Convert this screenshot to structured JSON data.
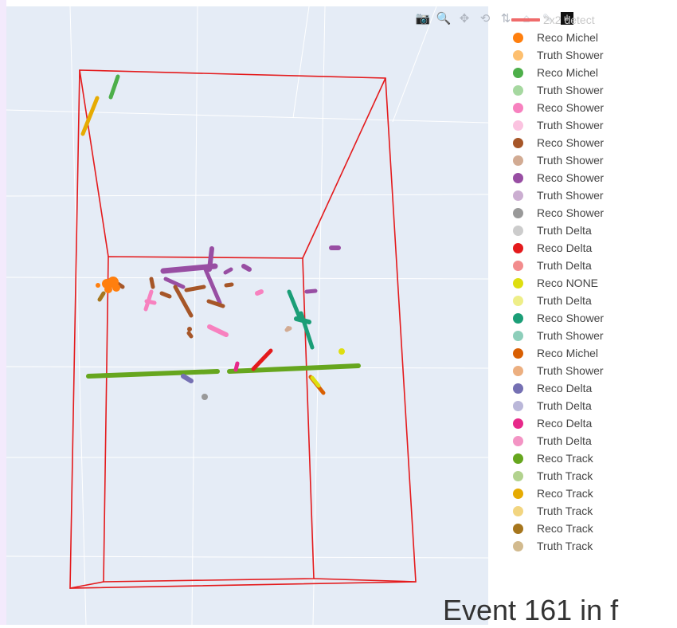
{
  "modebar": {
    "buttons": [
      {
        "icon": "camera-icon",
        "glyph": "📷"
      },
      {
        "icon": "zoom-icon",
        "glyph": "🔍"
      },
      {
        "icon": "pan-icon",
        "glyph": "✥"
      },
      {
        "icon": "orbit-rotation-icon",
        "glyph": "⟲"
      },
      {
        "icon": "turntable-rotation-icon",
        "glyph": "⇅"
      },
      {
        "icon": "reset-camera-icon",
        "glyph": "⌂"
      },
      {
        "icon": "hover-closest-icon",
        "glyph": "✎"
      }
    ],
    "logo_glyph": "ılı"
  },
  "legend": {
    "first_label": "2x2 detect",
    "items": [
      {
        "label": "Reco Michel",
        "color": "#ff7f0e"
      },
      {
        "label": "Truth Shower",
        "color": "#fdbf6f"
      },
      {
        "label": "Reco Michel",
        "color": "#4daf4a"
      },
      {
        "label": "Truth Shower",
        "color": "#a6d8a0"
      },
      {
        "label": "Reco Shower",
        "color": "#f781bf"
      },
      {
        "label": "Truth Shower",
        "color": "#fbc3e0"
      },
      {
        "label": "Reco Shower",
        "color": "#a65628"
      },
      {
        "label": "Truth Shower",
        "color": "#d2ab93"
      },
      {
        "label": "Reco Shower",
        "color": "#984ea3"
      },
      {
        "label": "Truth Shower",
        "color": "#cbaed1"
      },
      {
        "label": "Reco Shower",
        "color": "#999999"
      },
      {
        "label": "Truth Delta",
        "color": "#cccccc"
      },
      {
        "label": "Reco Delta",
        "color": "#e41a1c"
      },
      {
        "label": "Truth Delta",
        "color": "#f28c8d"
      },
      {
        "label": "Reco NONE",
        "color": "#dede10"
      },
      {
        "label": "Truth Delta",
        "color": "#eeee88"
      },
      {
        "label": "Reco Shower",
        "color": "#1b9e77"
      },
      {
        "label": "Truth Shower",
        "color": "#8dceba"
      },
      {
        "label": "Reco Michel",
        "color": "#d95f02"
      },
      {
        "label": "Truth Shower",
        "color": "#ecaf80"
      },
      {
        "label": "Reco Delta",
        "color": "#7570b3"
      },
      {
        "label": "Truth Delta",
        "color": "#bab7d9"
      },
      {
        "label": "Reco Delta",
        "color": "#e7298a"
      },
      {
        "label": "Truth Delta",
        "color": "#f394c4"
      },
      {
        "label": "Reco Track",
        "color": "#66a61e"
      },
      {
        "label": "Truth Track",
        "color": "#b2d28e"
      },
      {
        "label": "Reco Track",
        "color": "#e6ab02"
      },
      {
        "label": "Truth Track",
        "color": "#f2d580"
      },
      {
        "label": "Reco Track",
        "color": "#a6761d"
      },
      {
        "label": "Truth Track",
        "color": "#d2ba8e"
      }
    ]
  },
  "detector_color": "#e41a1c",
  "caption": "Event 161 in f"
}
